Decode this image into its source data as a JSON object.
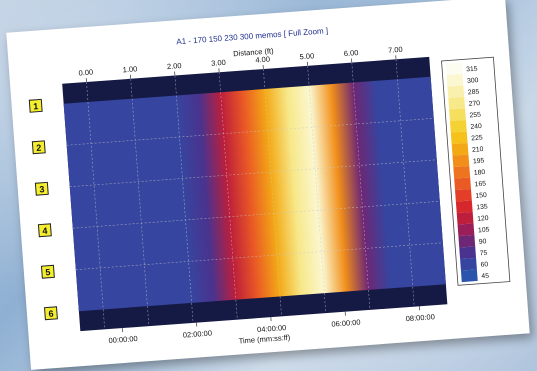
{
  "chart_data": {
    "type": "heatmap",
    "title": "A1 - 170 150 230 300 memos [ Full Zoom ]",
    "top_axis": {
      "label": "Distance (ft)",
      "ticks": [
        "0.00",
        "1.00",
        "2.00",
        "3.00",
        "4.00",
        "5.00",
        "6.00",
        "7.00"
      ]
    },
    "bottom_axis": {
      "label": "Time (mm:ss:ff)",
      "ticks": [
        "00:00:00",
        "02:00:00",
        "04:00:00",
        "06:00:00",
        "08:00:00"
      ]
    },
    "rows": [
      "1",
      "2",
      "3",
      "4",
      "5",
      "6"
    ],
    "colorbar": {
      "ticks": [
        315,
        300,
        285,
        270,
        255,
        240,
        225,
        210,
        195,
        180,
        165,
        150,
        135,
        120,
        105,
        90,
        75,
        60,
        45
      ],
      "colors": [
        "#fdfcf0",
        "#fbf7d0",
        "#f9f0ad",
        "#f7e88a",
        "#f6de5e",
        "#f5d233",
        "#f5c11a",
        "#f3a916",
        "#f18f1a",
        "#ee7420",
        "#ea5a25",
        "#e33f28",
        "#d6282c",
        "#bd1e3b",
        "#9a1e5a",
        "#6e2775",
        "#4a338e",
        "#36459f",
        "#2b54ac"
      ]
    },
    "band_pattern": {
      "distance_ft": [
        0.0,
        1.0,
        2.0,
        2.5,
        3.0,
        3.5,
        4.0,
        4.5,
        5.0,
        5.5,
        6.0,
        6.5,
        7.0,
        8.0
      ],
      "value": [
        55,
        55,
        58,
        80,
        120,
        160,
        210,
        270,
        300,
        200,
        90,
        60,
        55,
        55
      ]
    }
  },
  "colors": {
    "frame": "#151a45",
    "grid": "#c8c8c8",
    "row_label_bg": "#f4ee2e",
    "title": "#1f2f8f"
  }
}
